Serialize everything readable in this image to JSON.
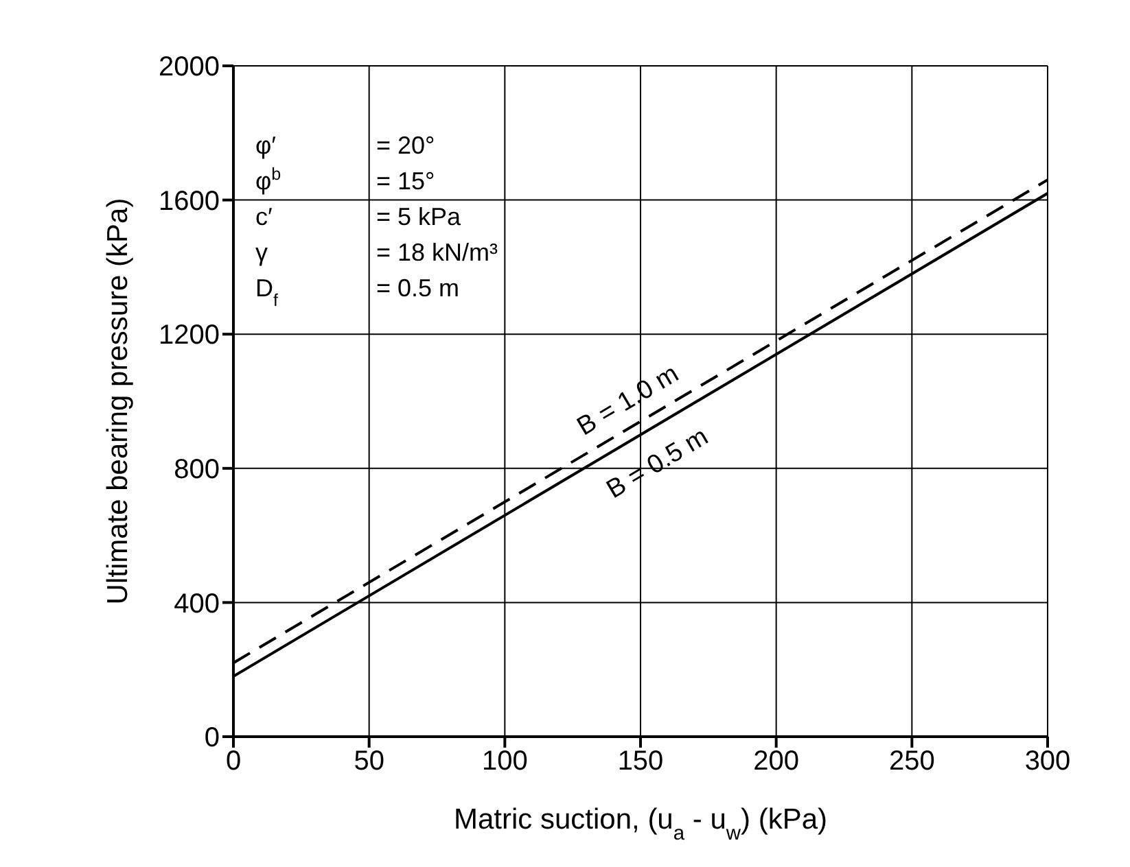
{
  "chart_data": {
    "type": "line",
    "xlabel": "Matric suction, (u$_{a}$ - u$_{w}$) (kPa)",
    "ylabel": "Ultimate bearing pressure (kPa)",
    "x": [
      0,
      300
    ],
    "series": [
      {
        "name": "B = 1.0 m",
        "color": "#000000",
        "values": [
          220,
          1660
        ],
        "line_style": "dashed"
      },
      {
        "name": "B = 0.5 m",
        "color": "#000000",
        "values": [
          180,
          1620
        ],
        "line_style": "solid"
      }
    ],
    "xlim": [
      0,
      300
    ],
    "xticks": [
      0,
      50,
      100,
      150,
      200,
      250,
      300
    ],
    "ylim": [
      0,
      2000
    ],
    "yticks": [
      0,
      400,
      800,
      1200,
      1600,
      2000
    ],
    "grid": true,
    "marker": "none",
    "annotations": [
      "φ′ = 20°",
      "φ$^{b}$ = 15°",
      "c′ = 5 kPa",
      "γ = 18 kN/m³",
      "D$_{f}$ = 0.5 m"
    ]
  }
}
